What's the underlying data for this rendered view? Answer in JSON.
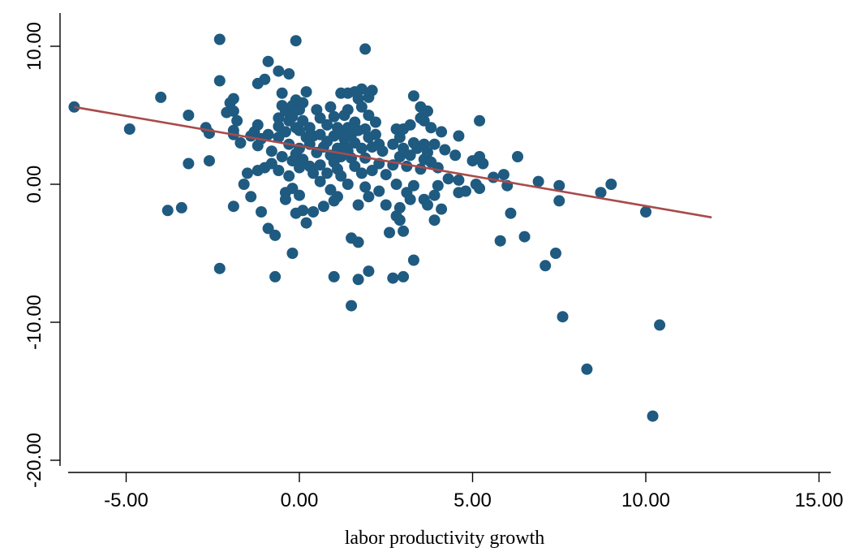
{
  "chart_data": {
    "type": "scatter",
    "title": "",
    "xlabel": "labor productivity growth",
    "ylabel": "",
    "xlim": [
      -6.8,
      15.3
    ],
    "ylim": [
      -21,
      12.5
    ],
    "x_ticks": [
      -5,
      0,
      5,
      10,
      15
    ],
    "x_tick_labels": [
      "-5.00",
      "0.00",
      "5.00",
      "10.00",
      "15.00"
    ],
    "y_ticks": [
      -20,
      -10,
      0,
      10
    ],
    "y_tick_labels": [
      "-20.00",
      "-10.00",
      "0.00",
      "10.00"
    ],
    "grid": false,
    "legend": "none",
    "colors": {
      "points": "#1f5a80",
      "fit_line": "#a94a4a"
    },
    "fit_line": {
      "x": [
        -6.5,
        11.9
      ],
      "y": [
        5.6,
        -2.4
      ]
    },
    "points": [
      [
        -6.5,
        5.6
      ],
      [
        -4.9,
        4.0
      ],
      [
        -4.0,
        6.3
      ],
      [
        -3.8,
        -1.9
      ],
      [
        -3.4,
        -1.7
      ],
      [
        -3.2,
        5.0
      ],
      [
        -3.2,
        1.5
      ],
      [
        -2.7,
        4.1
      ],
      [
        -2.6,
        3.7
      ],
      [
        -2.6,
        1.7
      ],
      [
        -2.3,
        10.5
      ],
      [
        -2.3,
        7.5
      ],
      [
        -2.3,
        -6.1
      ],
      [
        -2.1,
        5.2
      ],
      [
        -2.0,
        5.9
      ],
      [
        -1.9,
        6.2
      ],
      [
        -1.9,
        5.3
      ],
      [
        -1.9,
        3.9
      ],
      [
        -1.9,
        3.6
      ],
      [
        -1.9,
        -1.6
      ],
      [
        -1.8,
        4.6
      ],
      [
        -1.7,
        3.0
      ],
      [
        -1.6,
        0.0
      ],
      [
        -1.5,
        0.8
      ],
      [
        -1.4,
        3.5
      ],
      [
        -1.4,
        -0.9
      ],
      [
        -1.3,
        3.8
      ],
      [
        -1.2,
        7.3
      ],
      [
        -1.2,
        4.3
      ],
      [
        -1.2,
        2.8
      ],
      [
        -1.2,
        1.0
      ],
      [
        -1.1,
        3.3
      ],
      [
        -1.1,
        -2.0
      ],
      [
        -1.0,
        7.6
      ],
      [
        -1.0,
        1.2
      ],
      [
        -0.9,
        8.9
      ],
      [
        -0.9,
        3.6
      ],
      [
        -0.9,
        -3.2
      ],
      [
        -0.8,
        2.4
      ],
      [
        -0.8,
        1.5
      ],
      [
        -0.7,
        -3.7
      ],
      [
        -0.7,
        -6.7
      ],
      [
        -0.6,
        8.2
      ],
      [
        -0.6,
        4.8
      ],
      [
        -0.6,
        4.2
      ],
      [
        -0.6,
        3.4
      ],
      [
        -0.6,
        1.0
      ],
      [
        -0.5,
        6.6
      ],
      [
        -0.5,
        5.7
      ],
      [
        -0.5,
        2.0
      ],
      [
        -0.4,
        5.3
      ],
      [
        -0.4,
        3.8
      ],
      [
        -0.4,
        -0.6
      ],
      [
        -0.4,
        -1.1
      ],
      [
        -0.3,
        8.0
      ],
      [
        -0.3,
        4.6
      ],
      [
        -0.3,
        2.9
      ],
      [
        -0.3,
        0.6
      ],
      [
        -0.2,
        5.7
      ],
      [
        -0.2,
        4.9
      ],
      [
        -0.2,
        1.7
      ],
      [
        -0.2,
        -0.3
      ],
      [
        -0.2,
        -5.0
      ],
      [
        -0.1,
        10.4
      ],
      [
        -0.1,
        6.1
      ],
      [
        -0.1,
        4.1
      ],
      [
        -0.1,
        2.2
      ],
      [
        -0.1,
        -2.1
      ],
      [
        0.0,
        5.4
      ],
      [
        0.0,
        3.9
      ],
      [
        0.0,
        2.6
      ],
      [
        0.0,
        1.2
      ],
      [
        0.0,
        -0.8
      ],
      [
        0.1,
        5.9
      ],
      [
        0.1,
        4.6
      ],
      [
        0.1,
        1.8
      ],
      [
        0.1,
        -1.9
      ],
      [
        0.2,
        6.7
      ],
      [
        0.2,
        3.4
      ],
      [
        0.2,
        -2.8
      ],
      [
        0.3,
        4.1
      ],
      [
        0.3,
        2.9
      ],
      [
        0.3,
        1.3
      ],
      [
        0.4,
        3.5
      ],
      [
        0.4,
        0.8
      ],
      [
        0.4,
        -2.0
      ],
      [
        0.5,
        5.4
      ],
      [
        0.5,
        2.3
      ],
      [
        0.6,
        4.8
      ],
      [
        0.6,
        3.6
      ],
      [
        0.6,
        1.4
      ],
      [
        0.6,
        0.2
      ],
      [
        0.7,
        2.7
      ],
      [
        0.7,
        -1.6
      ],
      [
        0.8,
        4.3
      ],
      [
        0.8,
        3.1
      ],
      [
        0.8,
        0.8
      ],
      [
        0.9,
        5.6
      ],
      [
        0.9,
        2.1
      ],
      [
        0.9,
        -0.4
      ],
      [
        1.0,
        4.9
      ],
      [
        1.0,
        3.5
      ],
      [
        1.0,
        1.6
      ],
      [
        1.0,
        -6.7
      ],
      [
        1.0,
        -1.2
      ],
      [
        1.1,
        4.1
      ],
      [
        1.1,
        2.6
      ],
      [
        1.1,
        1.1
      ],
      [
        1.1,
        -0.9
      ],
      [
        1.2,
        6.6
      ],
      [
        1.2,
        3.8
      ],
      [
        1.2,
        2.0
      ],
      [
        1.2,
        0.6
      ],
      [
        1.3,
        5.0
      ],
      [
        1.3,
        3.3
      ],
      [
        1.3,
        2.8
      ],
      [
        1.4,
        6.6
      ],
      [
        1.4,
        5.4
      ],
      [
        1.4,
        4.1
      ],
      [
        1.4,
        2.4
      ],
      [
        1.4,
        0.0
      ],
      [
        1.5,
        3.6
      ],
      [
        1.5,
        1.9
      ],
      [
        1.5,
        -8.8
      ],
      [
        1.5,
        -3.9
      ],
      [
        1.6,
        6.7
      ],
      [
        1.6,
        4.5
      ],
      [
        1.6,
        3.0
      ],
      [
        1.6,
        1.3
      ],
      [
        1.7,
        6.2
      ],
      [
        1.7,
        3.9
      ],
      [
        1.7,
        -1.5
      ],
      [
        1.7,
        -4.2
      ],
      [
        1.7,
        -6.9
      ],
      [
        1.8,
        6.9
      ],
      [
        1.8,
        5.6
      ],
      [
        1.8,
        2.6
      ],
      [
        1.8,
        0.8
      ],
      [
        1.9,
        9.8
      ],
      [
        1.9,
        4.0
      ],
      [
        1.9,
        1.9
      ],
      [
        1.9,
        -0.2
      ],
      [
        2.0,
        6.3
      ],
      [
        2.0,
        5.0
      ],
      [
        2.0,
        3.4
      ],
      [
        2.0,
        -0.9
      ],
      [
        2.0,
        -6.3
      ],
      [
        2.1,
        6.8
      ],
      [
        2.1,
        2.7
      ],
      [
        2.1,
        1.0
      ],
      [
        2.2,
        4.5
      ],
      [
        2.2,
        3.6
      ],
      [
        2.3,
        2.9
      ],
      [
        2.3,
        1.5
      ],
      [
        2.3,
        -0.5
      ],
      [
        2.4,
        2.4
      ],
      [
        2.5,
        0.7
      ],
      [
        2.5,
        -1.5
      ],
      [
        2.6,
        -3.5
      ],
      [
        2.7,
        2.9
      ],
      [
        2.7,
        1.4
      ],
      [
        2.7,
        -6.8
      ],
      [
        2.8,
        4.0
      ],
      [
        2.8,
        0.0
      ],
      [
        2.8,
        -2.3
      ],
      [
        2.9,
        3.4
      ],
      [
        2.9,
        2.0
      ],
      [
        2.9,
        -1.7
      ],
      [
        2.9,
        -2.6
      ],
      [
        3.0,
        4.0
      ],
      [
        3.0,
        2.6
      ],
      [
        3.0,
        -6.7
      ],
      [
        3.0,
        -3.4
      ],
      [
        3.1,
        1.3
      ],
      [
        3.1,
        -0.6
      ],
      [
        3.2,
        4.3
      ],
      [
        3.2,
        2.1
      ],
      [
        3.2,
        -1.1
      ],
      [
        3.3,
        6.4
      ],
      [
        3.3,
        3.0
      ],
      [
        3.3,
        -0.1
      ],
      [
        3.3,
        -5.5
      ],
      [
        3.4,
        2.6
      ],
      [
        3.5,
        5.6
      ],
      [
        3.5,
        4.8
      ],
      [
        3.5,
        1.1
      ],
      [
        3.6,
        4.6
      ],
      [
        3.6,
        2.9
      ],
      [
        3.6,
        1.8
      ],
      [
        3.6,
        -1.1
      ],
      [
        3.7,
        5.3
      ],
      [
        3.7,
        2.3
      ],
      [
        3.7,
        -1.5
      ],
      [
        3.8,
        4.1
      ],
      [
        3.8,
        1.6
      ],
      [
        3.9,
        2.9
      ],
      [
        3.9,
        -0.8
      ],
      [
        3.9,
        -2.6
      ],
      [
        4.0,
        1.2
      ],
      [
        4.0,
        -0.1
      ],
      [
        4.1,
        3.8
      ],
      [
        4.1,
        -1.8
      ],
      [
        4.2,
        2.5
      ],
      [
        4.3,
        0.4
      ],
      [
        4.5,
        2.1
      ],
      [
        4.6,
        3.5
      ],
      [
        4.6,
        0.3
      ],
      [
        4.6,
        -0.6
      ],
      [
        4.8,
        -0.5
      ],
      [
        5.0,
        1.7
      ],
      [
        5.1,
        0.0
      ],
      [
        5.2,
        4.6
      ],
      [
        5.2,
        2.0
      ],
      [
        5.3,
        1.5
      ],
      [
        5.2,
        -0.3
      ],
      [
        5.6,
        0.5
      ],
      [
        5.8,
        -4.1
      ],
      [
        5.9,
        0.7
      ],
      [
        6.0,
        -0.1
      ],
      [
        6.1,
        -2.1
      ],
      [
        6.3,
        2.0
      ],
      [
        6.5,
        -3.8
      ],
      [
        6.9,
        0.2
      ],
      [
        7.1,
        -5.9
      ],
      [
        7.4,
        -5.0
      ],
      [
        7.5,
        -0.1
      ],
      [
        7.5,
        -1.2
      ],
      [
        7.6,
        -9.6
      ],
      [
        8.3,
        -13.4
      ],
      [
        8.7,
        -0.6
      ],
      [
        9.0,
        0.0
      ],
      [
        10.0,
        -2.0
      ],
      [
        10.2,
        -16.8
      ],
      [
        10.4,
        -10.2
      ]
    ]
  }
}
